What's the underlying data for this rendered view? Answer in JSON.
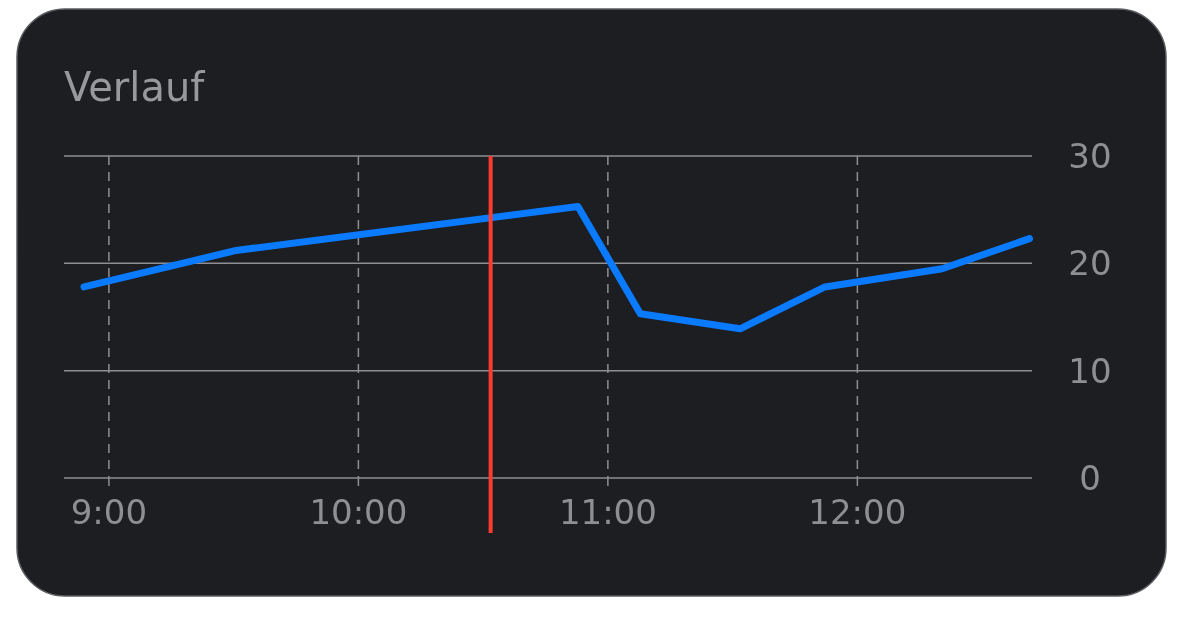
{
  "chart_data": {
    "type": "line",
    "title": "Verlauf",
    "x": [
      8.9,
      9.51,
      10.88,
      11.13,
      11.53,
      11.87,
      12.34,
      12.69
    ],
    "series": [
      {
        "color": "#0a7aff",
        "values": [
          17.8,
          21.2,
          25.3,
          15.3,
          13.9,
          17.8,
          19.5,
          22.3
        ]
      }
    ],
    "xlim": [
      8.82,
      12.7
    ],
    "xticks": [
      {
        "value": 9,
        "label": "9:00"
      },
      {
        "value": 10,
        "label": "10:00"
      },
      {
        "value": 11,
        "label": "11:00"
      },
      {
        "value": 12,
        "label": "12:00"
      }
    ],
    "ylim": [
      0,
      30
    ],
    "yticks": [
      0,
      10,
      20,
      30
    ],
    "grid": true,
    "marker": "none",
    "line_style": "solid",
    "ref_lines": [
      {
        "axis": "x",
        "value": 10.53,
        "color": "#ff3b30"
      }
    ]
  }
}
